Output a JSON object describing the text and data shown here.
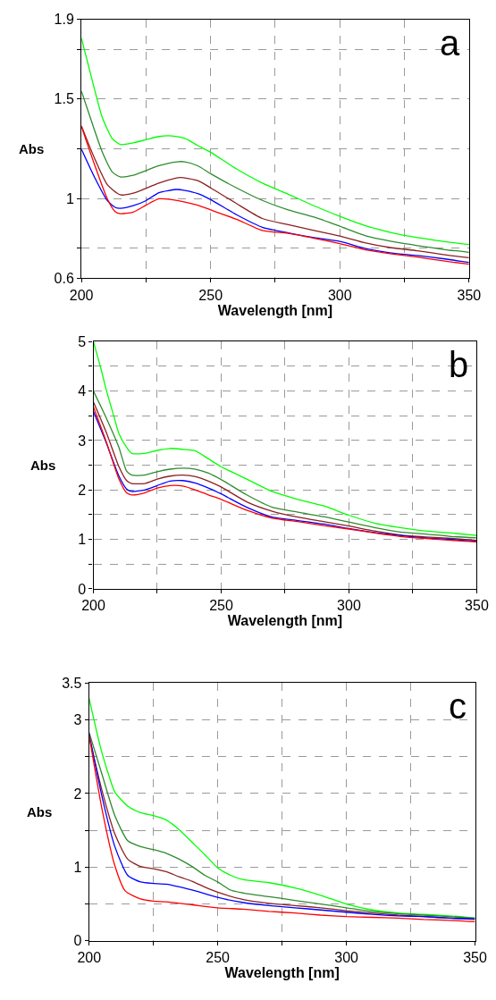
{
  "chart_data": [
    {
      "type": "line",
      "xlabel": "Wavelength [nm]",
      "ylabel": "Abs",
      "annotations": [
        "a"
      ],
      "grid": true,
      "marker": "none",
      "line_style": "solid",
      "xlim": [
        200,
        350
      ],
      "xticks": [
        200,
        {
          "value": 225,
          "label": null
        },
        250,
        {
          "value": 275,
          "label": null
        },
        300,
        {
          "value": 325,
          "label": null
        },
        350
      ],
      "ylim": [
        0.6,
        1.9
      ],
      "yticks": [
        0.6,
        {
          "value": 0.75,
          "label": null
        },
        1,
        {
          "value": 1.25,
          "label": null
        },
        1.5,
        {
          "value": 1.75,
          "label": null
        },
        1.9
      ],
      "series": [
        {
          "color": "#00ff00",
          "x": [
            200,
            205,
            208,
            212,
            215,
            220,
            225,
            230,
            235,
            240,
            245,
            250,
            260,
            270,
            280,
            290,
            300,
            310,
            320,
            330,
            340,
            350
          ],
          "values": [
            1.805,
            1.552,
            1.41,
            1.3,
            1.272,
            1.28,
            1.296,
            1.312,
            1.315,
            1.302,
            1.267,
            1.233,
            1.149,
            1.078,
            1.022,
            0.964,
            0.911,
            0.864,
            0.829,
            0.804,
            0.785,
            0.769
          ]
        },
        {
          "color": "#2e8b2e",
          "x": [
            200,
            205,
            208,
            212,
            215,
            220,
            230,
            237,
            240,
            245,
            250,
            260,
            270,
            280,
            290,
            300,
            310,
            320,
            330,
            340,
            350
          ],
          "values": [
            1.539,
            1.346,
            1.236,
            1.133,
            1.109,
            1.117,
            1.165,
            1.185,
            1.185,
            1.165,
            1.125,
            1.054,
            0.991,
            0.943,
            0.907,
            0.861,
            0.813,
            0.785,
            0.764,
            0.745,
            0.73
          ]
        },
        {
          "color": "#8b2020",
          "x": [
            200,
            205,
            210,
            215,
            220,
            230,
            238,
            245,
            250,
            260,
            270,
            280,
            290,
            300,
            310,
            320,
            330,
            340,
            350
          ],
          "values": [
            1.365,
            1.204,
            1.07,
            1.019,
            1.027,
            1.078,
            1.106,
            1.09,
            1.054,
            0.975,
            0.9,
            0.869,
            0.84,
            0.812,
            0.777,
            0.753,
            0.738,
            0.719,
            0.703
          ]
        },
        {
          "color": "#0000ff",
          "x": [
            200,
            205,
            210,
            213,
            215,
            220,
            225,
            230,
            237,
            240,
            245,
            250,
            260,
            270,
            280,
            290,
            300,
            310,
            320,
            330,
            340,
            350
          ],
          "values": [
            1.248,
            1.109,
            0.99,
            0.956,
            0.951,
            0.964,
            0.99,
            1.03,
            1.046,
            1.041,
            1.025,
            0.995,
            0.919,
            0.856,
            0.828,
            0.804,
            0.785,
            0.749,
            0.727,
            0.714,
            0.698,
            0.679
          ]
        },
        {
          "color": "#ff0000",
          "x": [
            200,
            205,
            210,
            213,
            215,
            220,
            225,
            230,
            235,
            240,
            245,
            250,
            260,
            270,
            280,
            290,
            300,
            310,
            320,
            330,
            340,
            350
          ],
          "values": [
            1.362,
            1.173,
            0.999,
            0.935,
            0.924,
            0.932,
            0.967,
            0.999,
            0.995,
            0.983,
            0.967,
            0.943,
            0.896,
            0.84,
            0.825,
            0.801,
            0.774,
            0.742,
            0.722,
            0.706,
            0.687,
            0.67
          ]
        }
      ]
    },
    {
      "type": "line",
      "xlabel": "Wavelength [nm]",
      "ylabel": "Abs",
      "annotations": [
        "b"
      ],
      "grid": true,
      "marker": "none",
      "line_style": "solid",
      "xlim": [
        200,
        350
      ],
      "xticks": [
        200,
        {
          "value": 225,
          "label": null
        },
        250,
        {
          "value": 275,
          "label": null
        },
        300,
        {
          "value": 325,
          "label": null
        },
        350
      ],
      "ylim": [
        0,
        5
      ],
      "yticks": [
        0,
        {
          "value": 0.5,
          "label": null
        },
        1,
        {
          "value": 1.5,
          "label": null
        },
        2,
        {
          "value": 2.5,
          "label": null
        },
        3,
        {
          "value": 3.5,
          "label": null
        },
        4,
        {
          "value": 4.5,
          "label": null
        },
        5
      ],
      "series": [
        {
          "color": "#00ff00",
          "x": [
            200,
            203,
            205,
            208,
            210,
            213,
            215,
            220,
            225,
            230,
            235,
            240,
            245,
            250,
            260,
            270,
            280,
            290,
            300,
            310,
            320,
            330,
            340,
            350
          ],
          "values": [
            5.0,
            4.44,
            4.03,
            3.49,
            3.14,
            2.86,
            2.74,
            2.74,
            2.8,
            2.84,
            2.82,
            2.79,
            2.63,
            2.47,
            2.22,
            1.97,
            1.81,
            1.68,
            1.49,
            1.33,
            1.24,
            1.17,
            1.13,
            1.08
          ]
        },
        {
          "color": "#2e8b2e",
          "x": [
            200,
            205,
            210,
            213,
            215,
            220,
            225,
            230,
            235,
            240,
            245,
            250,
            260,
            270,
            280,
            290,
            300,
            310,
            320,
            330,
            340,
            350
          ],
          "values": [
            4.0,
            3.46,
            2.86,
            2.38,
            2.3,
            2.3,
            2.37,
            2.42,
            2.44,
            2.42,
            2.34,
            2.21,
            1.9,
            1.65,
            1.55,
            1.46,
            1.35,
            1.24,
            1.15,
            1.11,
            1.06,
            1.03
          ]
        },
        {
          "color": "#8b2020",
          "x": [
            200,
            205,
            210,
            213,
            215,
            220,
            225,
            230,
            235,
            240,
            245,
            250,
            260,
            270,
            280,
            290,
            300,
            310,
            320,
            330,
            340,
            350
          ],
          "values": [
            3.78,
            3.17,
            2.47,
            2.19,
            2.13,
            2.13,
            2.22,
            2.28,
            2.3,
            2.27,
            2.18,
            2.06,
            1.76,
            1.57,
            1.45,
            1.36,
            1.27,
            1.17,
            1.09,
            1.05,
            1.02,
            0.98
          ]
        },
        {
          "color": "#0000ff",
          "x": [
            200,
            205,
            210,
            213,
            215,
            220,
            225,
            230,
            235,
            240,
            245,
            250,
            260,
            270,
            280,
            290,
            300,
            310,
            320,
            330,
            340,
            350
          ],
          "values": [
            3.59,
            2.96,
            2.28,
            2.02,
            1.97,
            2.0,
            2.09,
            2.18,
            2.19,
            2.14,
            2.04,
            1.92,
            1.65,
            1.45,
            1.38,
            1.31,
            1.22,
            1.14,
            1.08,
            1.03,
            1.0,
            0.96
          ]
        },
        {
          "color": "#ff0000",
          "x": [
            200,
            205,
            210,
            213,
            215,
            220,
            225,
            230,
            235,
            240,
            245,
            250,
            260,
            270,
            280,
            290,
            300,
            310,
            320,
            330,
            340,
            350
          ],
          "values": [
            3.68,
            2.98,
            2.22,
            1.94,
            1.9,
            1.94,
            2.04,
            2.09,
            2.08,
            2.0,
            1.9,
            1.81,
            1.59,
            1.43,
            1.36,
            1.28,
            1.21,
            1.13,
            1.06,
            1.02,
            0.98,
            0.95
          ]
        }
      ]
    },
    {
      "type": "line",
      "xlabel": "Wavelength [nm]",
      "ylabel": "Abs",
      "annotations": [
        "c"
      ],
      "grid": true,
      "marker": "none",
      "line_style": "solid",
      "xlim": [
        200,
        350
      ],
      "xticks": [
        200,
        {
          "value": 225,
          "label": null
        },
        250,
        {
          "value": 275,
          "label": null
        },
        300,
        {
          "value": 325,
          "label": null
        },
        350
      ],
      "ylim": [
        0,
        3.5
      ],
      "yticks": [
        0,
        {
          "value": 0.5,
          "label": null
        },
        1,
        {
          "value": 1.5,
          "label": null
        },
        2,
        {
          "value": 2.5,
          "label": null
        },
        3,
        3.5
      ],
      "series": [
        {
          "color": "#00ff00",
          "x": [
            200,
            203,
            205,
            208,
            210,
            215,
            220,
            225,
            230,
            235,
            240,
            245,
            250,
            255,
            260,
            270,
            280,
            290,
            300,
            310,
            320,
            330,
            340,
            350
          ],
          "values": [
            3.29,
            2.83,
            2.55,
            2.21,
            2.02,
            1.83,
            1.74,
            1.7,
            1.64,
            1.51,
            1.34,
            1.17,
            0.99,
            0.89,
            0.83,
            0.79,
            0.72,
            0.62,
            0.5,
            0.42,
            0.38,
            0.36,
            0.34,
            0.31
          ]
        },
        {
          "color": "#2e8b2e",
          "x": [
            200,
            205,
            210,
            215,
            220,
            225,
            230,
            235,
            240,
            245,
            250,
            255,
            260,
            270,
            280,
            290,
            300,
            310,
            320,
            330,
            340,
            350
          ],
          "values": [
            2.83,
            2.26,
            1.7,
            1.36,
            1.28,
            1.24,
            1.19,
            1.11,
            1.01,
            0.89,
            0.8,
            0.69,
            0.65,
            0.6,
            0.55,
            0.5,
            0.45,
            0.4,
            0.37,
            0.35,
            0.33,
            0.31
          ]
        },
        {
          "color": "#8b2020",
          "x": [
            200,
            205,
            210,
            215,
            220,
            225,
            230,
            235,
            240,
            245,
            250,
            260,
            270,
            280,
            290,
            300,
            310,
            320,
            330,
            340,
            350
          ],
          "values": [
            2.77,
            2.04,
            1.45,
            1.11,
            1.01,
            0.98,
            0.94,
            0.87,
            0.81,
            0.73,
            0.66,
            0.56,
            0.51,
            0.48,
            0.45,
            0.41,
            0.38,
            0.35,
            0.33,
            0.31,
            0.29
          ]
        },
        {
          "color": "#0000ff",
          "x": [
            200,
            205,
            210,
            215,
            220,
            225,
            230,
            240,
            250,
            260,
            270,
            280,
            290,
            300,
            310,
            320,
            330,
            340,
            350
          ],
          "values": [
            2.81,
            1.96,
            1.28,
            0.89,
            0.8,
            0.78,
            0.77,
            0.69,
            0.59,
            0.52,
            0.48,
            0.45,
            0.42,
            0.39,
            0.36,
            0.34,
            0.33,
            0.31,
            0.3
          ]
        },
        {
          "color": "#ff0000",
          "x": [
            200,
            205,
            210,
            214,
            220,
            225,
            230,
            240,
            250,
            260,
            270,
            280,
            290,
            300,
            310,
            320,
            330,
            340,
            350
          ],
          "values": [
            2.79,
            1.79,
            1.02,
            0.68,
            0.57,
            0.54,
            0.53,
            0.49,
            0.45,
            0.43,
            0.4,
            0.38,
            0.35,
            0.33,
            0.32,
            0.31,
            0.29,
            0.28,
            0.26
          ]
        }
      ]
    }
  ]
}
